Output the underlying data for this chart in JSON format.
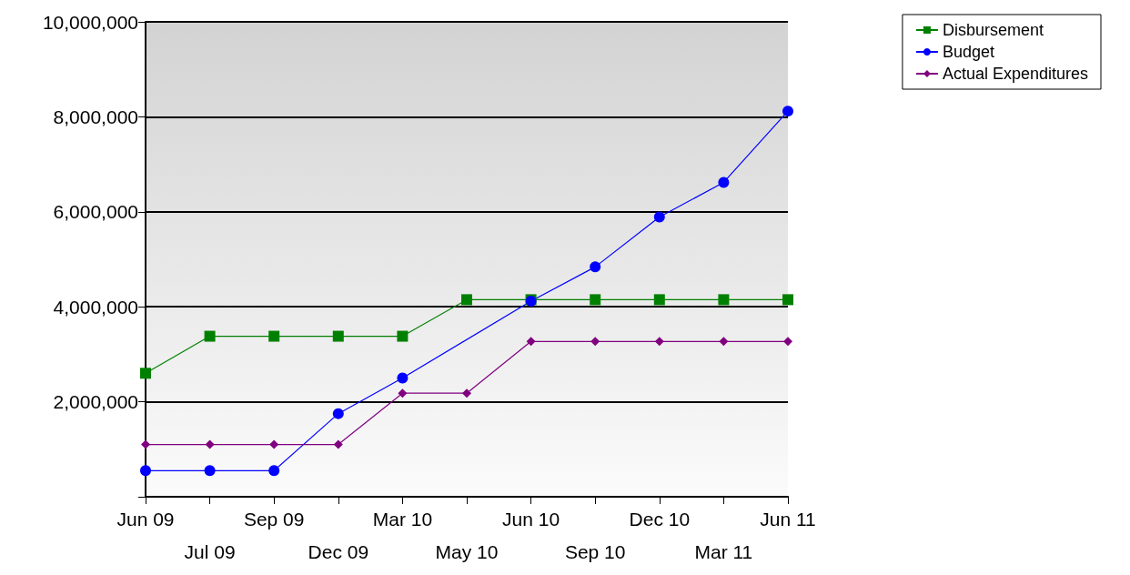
{
  "chart_data": {
    "type": "line",
    "categories": [
      "Jun 09",
      "Jul 09",
      "Sep 09",
      "Dec 09",
      "Mar 10",
      "May 10",
      "Jun 10",
      "Sep 10",
      "Dec 10",
      "Mar 11",
      "Jun 11"
    ],
    "series": [
      {
        "name": "Disbursement",
        "color": "#008000",
        "marker": "square",
        "values": [
          2600000,
          3380000,
          3380000,
          3380000,
          3380000,
          4150000,
          4150000,
          4150000,
          4150000,
          4150000,
          4150000
        ]
      },
      {
        "name": "Budget",
        "color": "#0000ff",
        "marker": "circle",
        "values": [
          550000,
          550000,
          550000,
          1750000,
          2500000,
          null,
          4120000,
          4840000,
          5890000,
          6620000,
          8120000
        ]
      },
      {
        "name": "Actual Expenditures",
        "color": "#800080",
        "marker": "diamond",
        "values": [
          1100000,
          1100000,
          1100000,
          1100000,
          2180000,
          2180000,
          3270000,
          3270000,
          3270000,
          3270000,
          3270000
        ]
      }
    ],
    "ylim": [
      0,
      10000000
    ],
    "yticks": [
      {
        "value": 0,
        "label": null
      },
      {
        "value": 2000000,
        "label": "2,000,000"
      },
      {
        "value": 4000000,
        "label": "4,000,000"
      },
      {
        "value": 6000000,
        "label": "6,000,000"
      },
      {
        "value": 8000000,
        "label": "8,000,000"
      },
      {
        "value": 10000000,
        "label": "10,000,000"
      }
    ],
    "grid": "y",
    "legend": "top right",
    "line_style": "solid"
  }
}
